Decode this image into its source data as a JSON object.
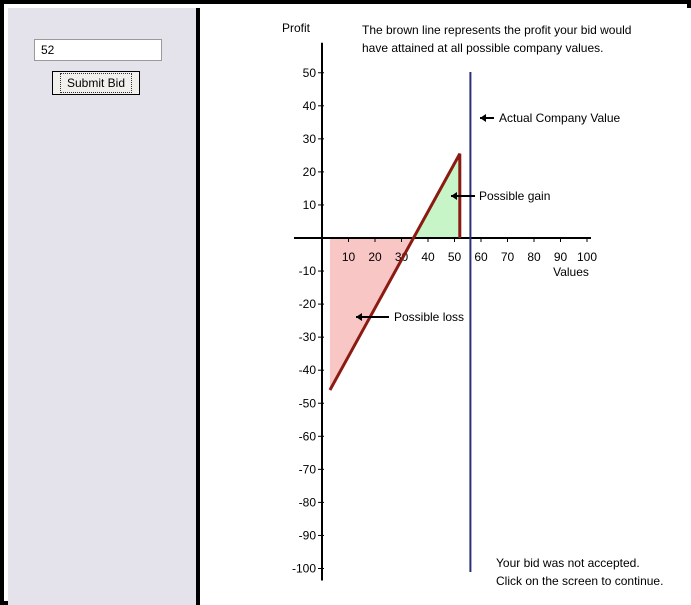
{
  "left_panel": {
    "bid_value": "52",
    "submit_label": "Submit Bid"
  },
  "explanation": [
    "The brown line represents the profit your bid would",
    "have attained at all possible company values."
  ],
  "status": [
    "Your bid was not accepted.",
    "Click on the screen to continue."
  ],
  "colors": {
    "profit_line": "#8b1a12",
    "gain_fill": "#c8f5c8",
    "loss_fill": "#f9c6c6",
    "actual_value_line": "#2b2f7a"
  },
  "chart_data": {
    "type": "line",
    "xlabel": "Values",
    "ylabel": "Profit",
    "xlim": [
      0,
      100
    ],
    "ylim": [
      -100,
      50
    ],
    "x_ticks": [
      10,
      20,
      30,
      40,
      50,
      60,
      70,
      80,
      90,
      100
    ],
    "y_ticks": [
      50,
      40,
      30,
      20,
      10,
      -10,
      -20,
      -30,
      -40,
      -50,
      -60,
      -70,
      -80,
      -90,
      -100
    ],
    "bid": 52,
    "actual_company_value": 56,
    "profit_line": {
      "x": [
        3,
        52
      ],
      "y": [
        -46,
        25.5
      ]
    },
    "annotations": {
      "actual": "Actual Company Value",
      "gain": "Possible gain",
      "loss": "Possible loss"
    }
  }
}
